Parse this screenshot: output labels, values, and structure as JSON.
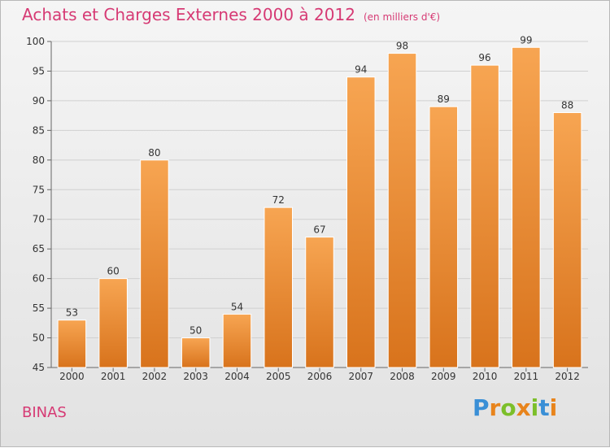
{
  "chart_data": {
    "type": "bar",
    "title": "Achats et Charges Externes 2000 à 2012",
    "unit_note": "(en milliers d'€)",
    "categories": [
      "2000",
      "2001",
      "2002",
      "2003",
      "2004",
      "2005",
      "2006",
      "2007",
      "2008",
      "2009",
      "2010",
      "2011",
      "2012"
    ],
    "values": [
      53,
      60,
      80,
      50,
      54,
      72,
      67,
      94,
      98,
      89,
      96,
      99,
      88
    ],
    "ylim": [
      45,
      100
    ],
    "yticks": [
      45,
      50,
      55,
      60,
      65,
      70,
      75,
      80,
      85,
      90,
      95,
      100
    ],
    "grid": true,
    "bar_color_top": "#f7a552",
    "bar_color_bottom": "#d8731c"
  },
  "footer": {
    "commune": "BINAS",
    "brand": "Proxiti"
  },
  "colors": {
    "title": "#d63a74",
    "brand_letters": [
      "#3a8fd6",
      "#e8841c",
      "#7cbf2a",
      "#e8841c",
      "#7cbf2a",
      "#3a8fd6",
      "#e8841c"
    ]
  }
}
